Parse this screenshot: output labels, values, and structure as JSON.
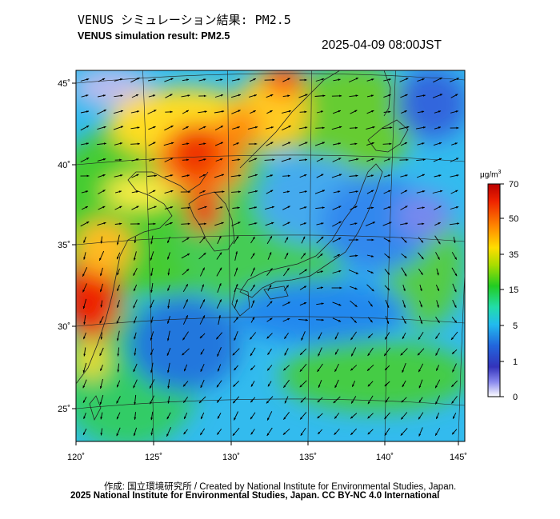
{
  "title_jp": "VENUS シミュレーション結果: PM2.5",
  "title_en": "VENUS simulation result: PM2.5",
  "timestamp": "2025-04-09 08:00JST",
  "map": {
    "lon_labels": [
      "120˚",
      "125˚",
      "130˚",
      "135˚",
      "140˚",
      "145˚"
    ],
    "lat_labels": [
      "45˚",
      "40˚",
      "35˚",
      "30˚",
      "25˚"
    ],
    "lon_range": [
      120,
      145
    ],
    "lat_range": [
      23,
      46
    ]
  },
  "colorbar": {
    "unit": "μg/m",
    "unit_sup": "3",
    "ticks": [
      "70",
      "50",
      "35",
      "15",
      "5",
      "1",
      "0"
    ],
    "colors": [
      "#cc0000",
      "#ee3300",
      "#ff8800",
      "#ffdd00",
      "#aadd00",
      "#22cc22",
      "#22ddaa",
      "#22bbee",
      "#2266dd",
      "#3333bb",
      "#8888ee",
      "#ffffff"
    ]
  },
  "credits": {
    "line1": "作成: 国立環境研究所 / Created by National Institute for Environmental Studies, Japan.",
    "line2": "2025 National Institute for Environmental Studies, Japan. CC BY-NC 4.0 International"
  }
}
